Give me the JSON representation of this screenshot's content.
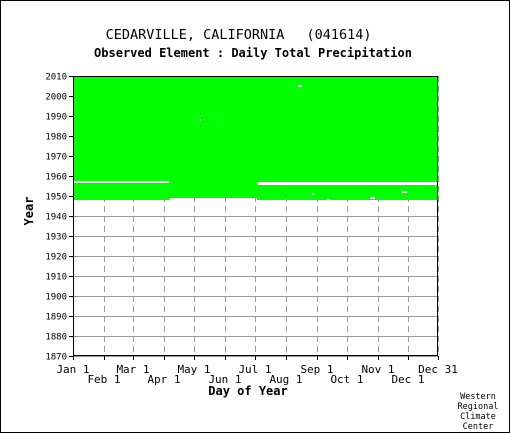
{
  "header": {
    "station": "CEDARVILLE, CALIFORNIA",
    "station_id": "(041614)",
    "element": "Observed Element : Daily Total Precipitation"
  },
  "credit": [
    "Western",
    "Regional",
    "Climate",
    "Center"
  ],
  "colors": {
    "data": "#00ff00",
    "grid": "#999999",
    "axis": "#000000",
    "background": "#ffffff"
  },
  "chart_data": {
    "type": "heatmap",
    "title": "CEDARVILLE, CALIFORNIA   (041614)",
    "subtitle": "Observed Element : Daily Total Precipitation",
    "xlabel": "Day of Year",
    "ylabel": "Year",
    "x_domain_days": [
      1,
      366
    ],
    "xticks": [
      {
        "label": "Jan 1",
        "day": 1,
        "row": 0
      },
      {
        "label": "Feb 1",
        "day": 32,
        "row": 1
      },
      {
        "label": "Mar 1",
        "day": 61,
        "row": 0
      },
      {
        "label": "Apr 1",
        "day": 92,
        "row": 1
      },
      {
        "label": "May 1",
        "day": 122,
        "row": 0
      },
      {
        "label": "Jun 1",
        "day": 153,
        "row": 1
      },
      {
        "label": "Jul 1",
        "day": 183,
        "row": 0
      },
      {
        "label": "Aug 1",
        "day": 214,
        "row": 1
      },
      {
        "label": "Sep 1",
        "day": 245,
        "row": 0
      },
      {
        "label": "Oct 1",
        "day": 275,
        "row": 1
      },
      {
        "label": "Nov 1",
        "day": 306,
        "row": 0
      },
      {
        "label": "Dec 1",
        "day": 336,
        "row": 1
      },
      {
        "label": "Dec 31",
        "day": 366,
        "row": 0
      }
    ],
    "ylim": [
      1870,
      2010
    ],
    "yticks": [
      1870,
      1880,
      1890,
      1900,
      1910,
      1920,
      1930,
      1940,
      1950,
      1960,
      1970,
      1980,
      1990,
      2000,
      2010
    ],
    "grid": true,
    "legend": "none",
    "observed_blocks": [
      {
        "day_start": 1,
        "day_end": 366,
        "year_start": 1957,
        "year_end": 2010
      },
      {
        "day_start": 1,
        "day_end": 97,
        "year_start": 1948,
        "year_end": 1957
      },
      {
        "day_start": 97,
        "day_end": 185,
        "year_start": 1949,
        "year_end": 1957
      },
      {
        "day_start": 185,
        "day_end": 366,
        "year_start": 1948,
        "year_end": 1956
      }
    ],
    "missing_segments": [
      {
        "day_start": 1,
        "day_end": 97,
        "year": 1957
      },
      {
        "day_start": 185,
        "day_end": 366,
        "year": 1956
      },
      {
        "day_start": 226,
        "day_end": 230,
        "year": 2005
      },
      {
        "day_start": 128,
        "day_end": 129,
        "year": 1988
      },
      {
        "day_start": 139,
        "day_end": 140,
        "year": 1984
      },
      {
        "day_start": 330,
        "day_end": 335,
        "year": 1952
      },
      {
        "day_start": 298,
        "day_end": 303,
        "year": 1949
      },
      {
        "day_start": 255,
        "day_end": 258,
        "year": 1948
      },
      {
        "day_start": 240,
        "day_end": 242,
        "year": 1951
      },
      {
        "day_start": 213,
        "day_end": 214,
        "year": 1948
      }
    ]
  }
}
